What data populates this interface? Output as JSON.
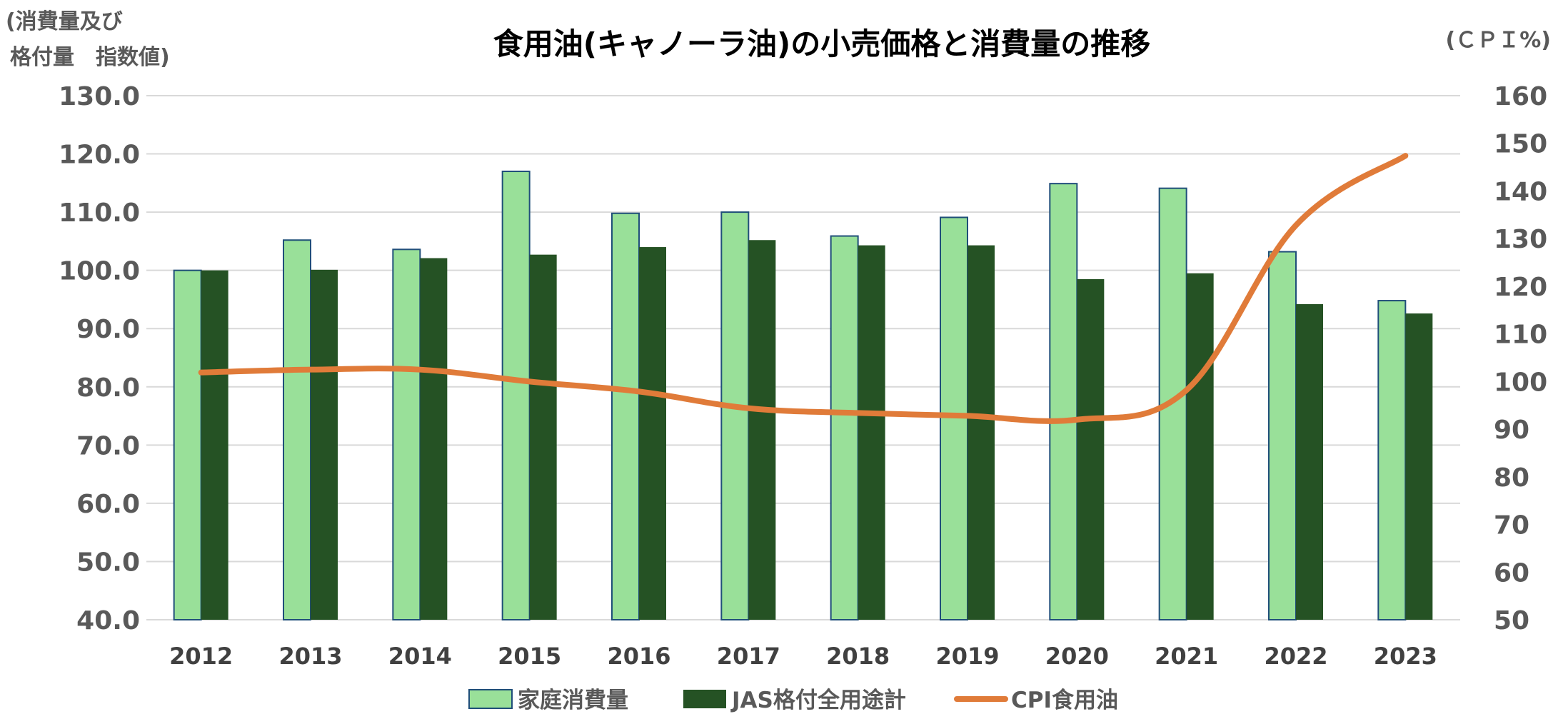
{
  "chart_data": {
    "type": "bar",
    "title": "食用油(キャノーラ油)の小売価格と消費量の推移",
    "ylabel_left_line1": "(消費量及び",
    "ylabel_left_line2": "格付量　指数値)",
    "ylabel_right": "(ＣＰＩ%)",
    "categories": [
      "2012",
      "2013",
      "2014",
      "2015",
      "2016",
      "2017",
      "2018",
      "2019",
      "2020",
      "2021",
      "2022",
      "2023"
    ],
    "y_left": {
      "lim": [
        40,
        130
      ],
      "ticks": [
        40,
        50,
        60,
        70,
        80,
        90,
        100,
        110,
        120,
        130
      ],
      "tick_labels": [
        "40.0",
        "50.0",
        "60.0",
        "70.0",
        "80.0",
        "90.0",
        "100.0",
        "110.0",
        "120.0",
        "130.0"
      ]
    },
    "y_right": {
      "lim": [
        50,
        160
      ],
      "ticks": [
        50,
        60,
        70,
        80,
        90,
        100,
        110,
        120,
        130,
        140,
        150,
        160
      ],
      "tick_labels": [
        "50",
        "60",
        "70",
        "80",
        "90",
        "100",
        "110",
        "120",
        "130",
        "140",
        "150",
        "160"
      ]
    },
    "grid": true,
    "legend_position": "bottom",
    "series": [
      {
        "name": "家庭消費量",
        "type": "bar",
        "axis": "left",
        "color": "#99e099",
        "border_color": "#1f4e79",
        "values": [
          100.0,
          105.2,
          103.6,
          117.0,
          109.8,
          110.0,
          105.9,
          109.1,
          114.9,
          114.1,
          103.2,
          94.8
        ]
      },
      {
        "name": "JAS格付全用途計",
        "type": "bar",
        "axis": "left",
        "color": "#255224",
        "values": [
          100.0,
          100.1,
          102.1,
          102.7,
          104.0,
          105.2,
          104.3,
          104.3,
          98.5,
          99.5,
          94.2,
          92.6
        ]
      },
      {
        "name": "CPI食用油",
        "type": "line",
        "axis": "right",
        "color": "#e07b39",
        "values": [
          101.9,
          102.5,
          102.5,
          100.0,
          97.9,
          94.4,
          93.4,
          92.8,
          92.0,
          98.2,
          132.8,
          147.4
        ]
      }
    ]
  }
}
